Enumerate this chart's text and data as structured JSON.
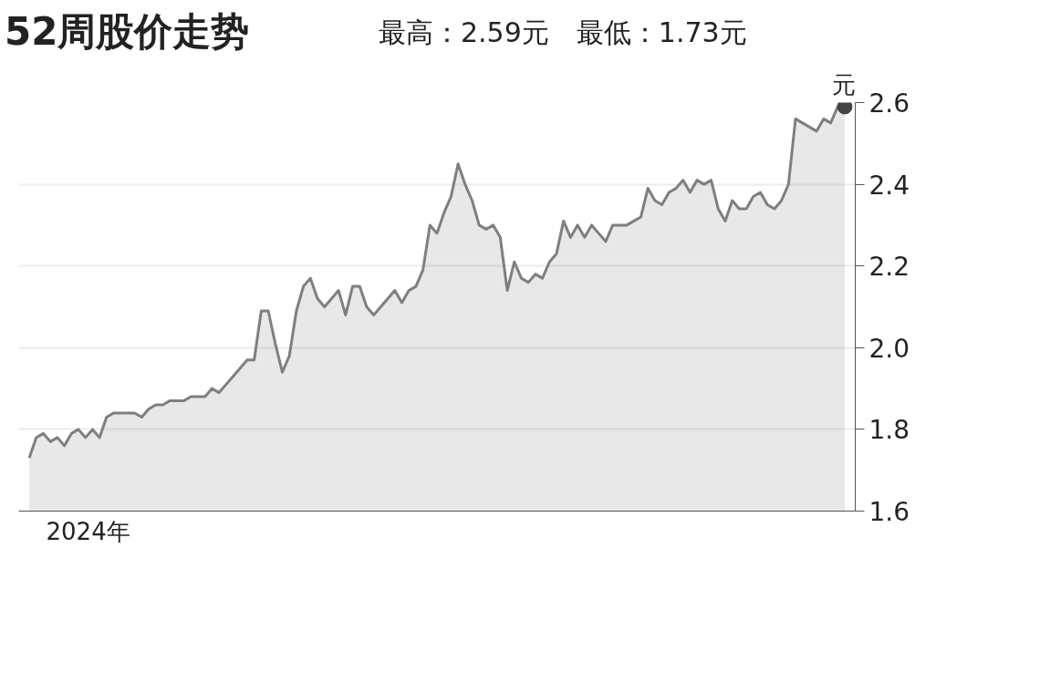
{
  "chart_data": {
    "type": "area",
    "title": "52周股价走势",
    "subtitle": "最高：2.59元　最低：1.73元",
    "ylabel": "元",
    "annotations": [
      "2024年"
    ],
    "categories": [
      null,
      null,
      null,
      null,
      null,
      null,
      null,
      null,
      null,
      null,
      null,
      null,
      null,
      null,
      null,
      null,
      null,
      null,
      null,
      null,
      null,
      null,
      null,
      null,
      null,
      null,
      null,
      null,
      null,
      null,
      null,
      null,
      null,
      null,
      null,
      null,
      null,
      null,
      null,
      null,
      null,
      null,
      null,
      null,
      null,
      null,
      null,
      null,
      null,
      null,
      null,
      null,
      null,
      null,
      null,
      null,
      null,
      null,
      null,
      null,
      null,
      null,
      null,
      null,
      null,
      null,
      null,
      null,
      null,
      null,
      null,
      null,
      null,
      null,
      null,
      null,
      null,
      null,
      null,
      null,
      null,
      null,
      null,
      null,
      null,
      null,
      null,
      null,
      null,
      null,
      null,
      null,
      null,
      null,
      null,
      null,
      null,
      null,
      null,
      null,
      null,
      null,
      null,
      null,
      null,
      null,
      null,
      null,
      null,
      null,
      null,
      null,
      null,
      null,
      null,
      null,
      null
    ],
    "series": [
      {
        "color": "#7f7f7f",
        "values": [
          1.73,
          1.78,
          1.79,
          1.77,
          1.78,
          1.76,
          1.79,
          1.8,
          1.78,
          1.8,
          1.78,
          1.83,
          1.84,
          1.84,
          1.84,
          1.84,
          1.83,
          1.85,
          1.86,
          1.86,
          1.87,
          1.87,
          1.87,
          1.88,
          1.88,
          1.88,
          1.9,
          1.89,
          1.91,
          1.93,
          1.95,
          1.97,
          1.97,
          2.09,
          2.09,
          2.01,
          1.94,
          1.98,
          2.09,
          2.15,
          2.17,
          2.12,
          2.1,
          2.12,
          2.14,
          2.08,
          2.15,
          2.15,
          2.1,
          2.08,
          2.1,
          2.12,
          2.14,
          2.11,
          2.14,
          2.15,
          2.19,
          2.3,
          2.28,
          2.33,
          2.37,
          2.45,
          2.4,
          2.36,
          2.3,
          2.29,
          2.3,
          2.27,
          2.14,
          2.21,
          2.17,
          2.16,
          2.18,
          2.17,
          2.21,
          2.23,
          2.31,
          2.27,
          2.3,
          2.27,
          2.3,
          2.28,
          2.26,
          2.3,
          2.3,
          2.3,
          2.31,
          2.32,
          2.39,
          2.36,
          2.35,
          2.38,
          2.39,
          2.41,
          2.38,
          2.41,
          2.4,
          2.41,
          2.34,
          2.31,
          2.36,
          2.34,
          2.34,
          2.37,
          2.38,
          2.35,
          2.34,
          2.36,
          2.4,
          2.56,
          2.55,
          2.54,
          2.53,
          2.56,
          2.55,
          2.59,
          2.59
        ]
      },
      {
        "type": "scatter",
        "marker": "circle",
        "color": "#444444",
        "values": [
          null,
          null,
          null,
          null,
          null,
          null,
          null,
          null,
          null,
          null,
          null,
          null,
          null,
          null,
          null,
          null,
          null,
          null,
          null,
          null,
          null,
          null,
          null,
          null,
          null,
          null,
          null,
          null,
          null,
          null,
          null,
          null,
          null,
          null,
          null,
          null,
          null,
          null,
          null,
          null,
          null,
          null,
          null,
          null,
          null,
          null,
          null,
          null,
          null,
          null,
          null,
          null,
          null,
          null,
          null,
          null,
          null,
          null,
          null,
          null,
          null,
          null,
          null,
          null,
          null,
          null,
          null,
          null,
          null,
          null,
          null,
          null,
          null,
          null,
          null,
          null,
          null,
          null,
          null,
          null,
          null,
          null,
          null,
          null,
          null,
          null,
          null,
          null,
          null,
          null,
          null,
          null,
          null,
          null,
          null,
          null,
          null,
          null,
          null,
          null,
          null,
          null,
          null,
          null,
          null,
          null,
          null,
          null,
          null,
          null,
          null,
          null,
          null,
          null,
          null,
          null,
          2.59
        ]
      }
    ],
    "ylim": [
      1.6,
      2.6
    ],
    "yticks": [
      {
        "value": 1.6,
        "label": "1.6"
      },
      {
        "value": 1.8,
        "label": "1.8"
      },
      {
        "value": 2,
        "label": "2.0"
      },
      {
        "value": 2.2,
        "label": "2.2"
      },
      {
        "value": 2.4,
        "label": "2.4"
      },
      {
        "value": 2.6,
        "label": "2.6"
      }
    ],
    "grid": "y",
    "marker": "none",
    "line_style": "solid"
  }
}
